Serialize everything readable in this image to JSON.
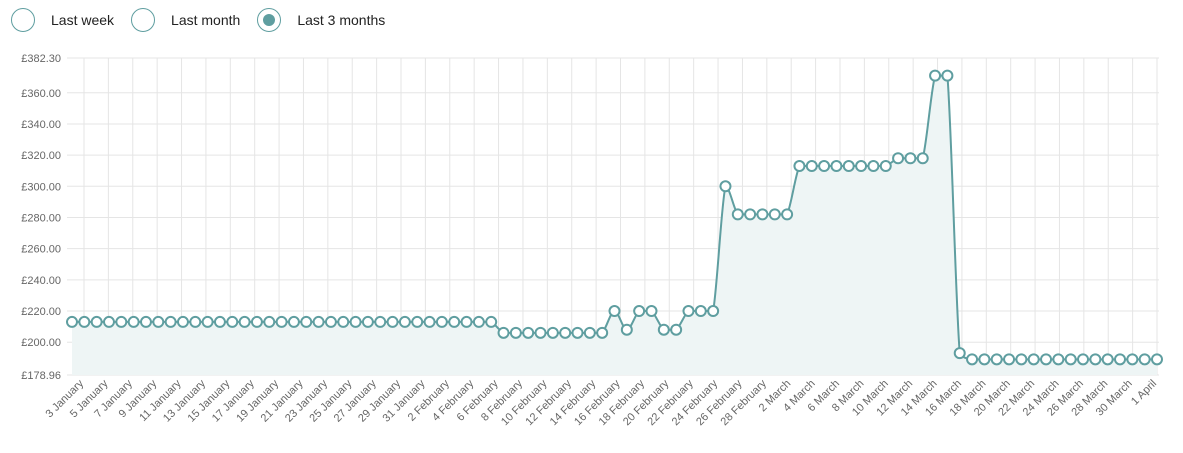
{
  "range_selector": {
    "options": [
      {
        "label": "Last week",
        "selected": false
      },
      {
        "label": "Last month",
        "selected": false
      },
      {
        "label": "Last 3 months",
        "selected": true
      }
    ]
  },
  "colors": {
    "line": "#5f9ea0",
    "fill": "#eef5f5",
    "grid": "#e5e5e5",
    "point_fill": "#ffffff"
  },
  "chart_data": {
    "type": "line",
    "title": "",
    "xlabel": "",
    "ylabel": "",
    "ylim": [
      178.96,
      382.3
    ],
    "y_ticks": [
      "£382.30",
      "£360.00",
      "£340.00",
      "£320.00",
      "£300.00",
      "£280.00",
      "£260.00",
      "£240.00",
      "£220.00",
      "£200.00",
      "£178.96"
    ],
    "y_tick_values": [
      382.3,
      360,
      340,
      320,
      300,
      280,
      260,
      240,
      220,
      200,
      178.96
    ],
    "x_tick_labels": [
      "3 January",
      "5 January",
      "7 January",
      "9 January",
      "11 January",
      "13 January",
      "15 January",
      "17 January",
      "19 January",
      "21 January",
      "23 January",
      "25 January",
      "27 January",
      "29 January",
      "31 January",
      "2 February",
      "4 February",
      "6 February",
      "8 February",
      "10 February",
      "12 February",
      "14 February",
      "16 February",
      "18 February",
      "20 February",
      "22 February",
      "24 February",
      "26 February",
      "28 February",
      "2 March",
      "4 March",
      "6 March",
      "8 March",
      "10 March",
      "12 March",
      "14 March",
      "16 March",
      "18 March",
      "20 March",
      "22 March",
      "24 March",
      "26 March",
      "28 March",
      "30 March",
      "1 April"
    ],
    "grid": true,
    "filled": true,
    "series": [
      {
        "values": [
          213,
          213,
          213,
          213,
          213,
          213,
          213,
          213,
          213,
          213,
          213,
          213,
          213,
          213,
          213,
          213,
          213,
          213,
          213,
          213,
          213,
          213,
          213,
          213,
          213,
          213,
          213,
          213,
          213,
          213,
          213,
          213,
          213,
          213,
          213,
          206,
          206,
          206,
          206,
          206,
          206,
          206,
          206,
          206,
          220,
          208,
          220,
          220,
          208,
          208,
          220,
          220,
          220,
          300,
          282,
          282,
          282,
          282,
          282,
          313,
          313,
          313,
          313,
          313,
          313,
          313,
          313,
          318,
          318,
          318,
          371,
          371,
          193,
          189,
          189,
          189,
          189,
          189,
          189,
          189,
          189,
          189,
          189,
          189,
          189,
          189,
          189,
          189,
          189
        ]
      }
    ]
  }
}
